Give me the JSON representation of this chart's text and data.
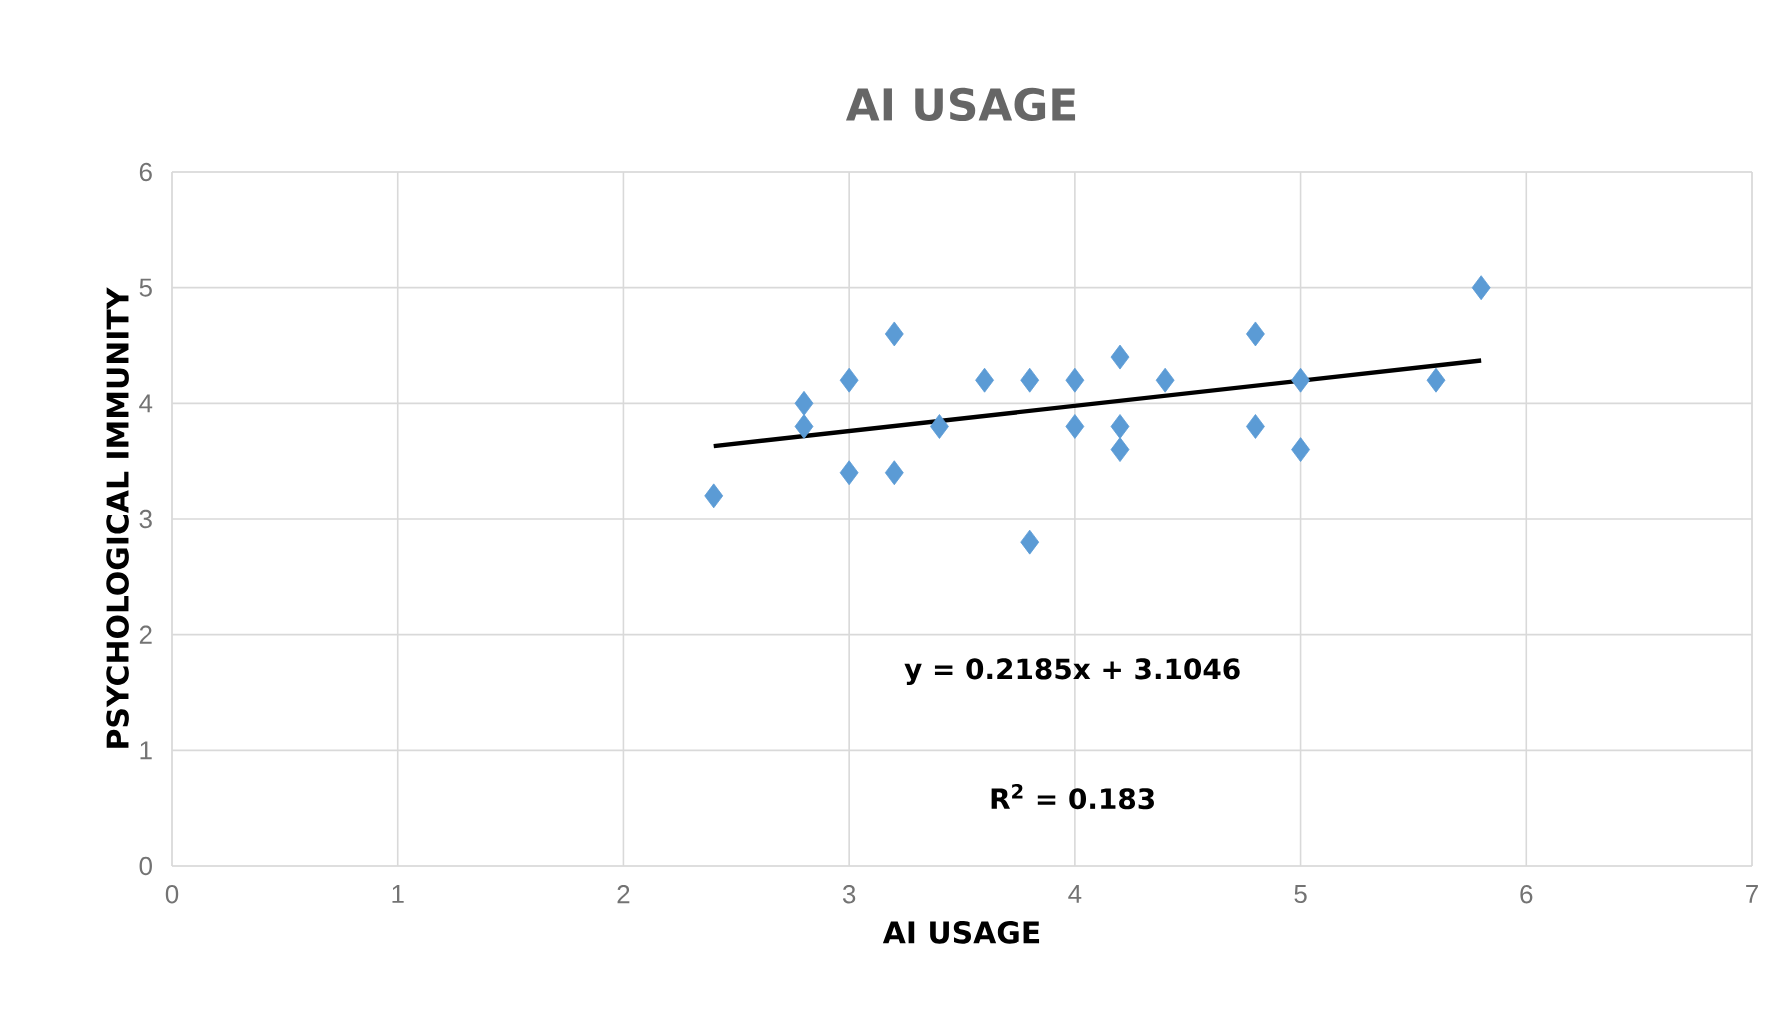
{
  "chart_data": {
    "type": "scatter",
    "title": "AI USAGE",
    "xlabel": "AI USAGE",
    "ylabel": "PSYCHOLOGICAL IMMUNITY",
    "xlim": [
      0,
      7
    ],
    "xticks": [
      0,
      1,
      2,
      3,
      4,
      5,
      6,
      7
    ],
    "ylim": [
      0,
      6
    ],
    "yticks": [
      0,
      1,
      2,
      3,
      4,
      5,
      6
    ],
    "grid": true,
    "series": [
      {
        "marker": "diamond",
        "color": "#5b9bd5",
        "x": [
          2.4,
          2.8,
          2.8,
          3.0,
          3.0,
          3.2,
          3.2,
          3.4,
          3.6,
          3.8,
          3.8,
          4.0,
          4.0,
          4.2,
          4.2,
          4.2,
          4.4,
          4.8,
          4.8,
          5.0,
          5.0,
          5.6,
          5.8
        ],
        "values": [
          3.2,
          4.0,
          3.8,
          4.2,
          3.4,
          4.6,
          3.4,
          3.8,
          4.2,
          4.2,
          2.8,
          4.2,
          3.8,
          4.4,
          3.8,
          3.6,
          4.2,
          4.6,
          3.8,
          4.2,
          3.6,
          4.2,
          5.0
        ]
      },
      {
        "type": "line",
        "color": "#000000",
        "x": [
          2.4,
          5.8
        ],
        "values": [
          3.63,
          4.37
        ]
      }
    ],
    "annotations": [
      "y = 0.2185x + 3.1046",
      "R$^{2}$ = 0.183"
    ]
  }
}
